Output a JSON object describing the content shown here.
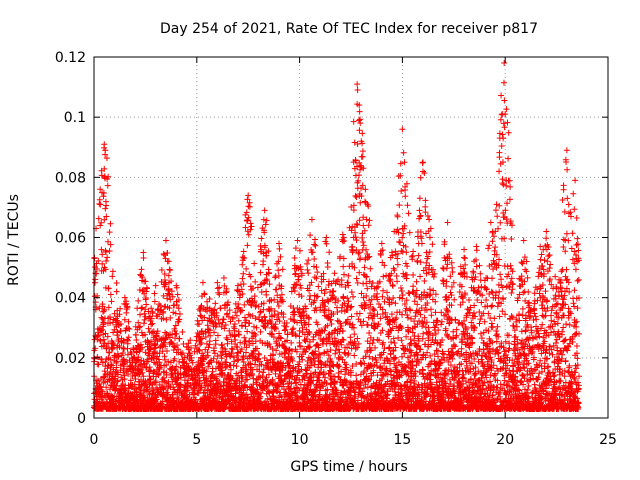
{
  "chart_data": {
    "type": "scatter",
    "title": "Day 254 of 2021, Rate Of TEC Index for receiver p817",
    "xlabel": "GPS time / hours",
    "ylabel": "ROTI / TECUs",
    "xlim": [
      0,
      25
    ],
    "ylim": [
      0,
      0.12
    ],
    "grid": true,
    "marker": "+",
    "color": "#ff0000",
    "xticks": [
      "0",
      "5",
      "10",
      "15",
      "20",
      "25"
    ],
    "yticks": [
      "0",
      "0.02",
      "0.04",
      "0.06",
      "0.08",
      "0.1",
      "0.12"
    ],
    "x_start": 0,
    "x_end": 23.6,
    "sample_interval_hours": 0.01,
    "series": [
      {
        "values_peaks": [
          [
            0.1,
            0.063
          ],
          [
            0.3,
            0.064
          ],
          [
            0.5,
            0.091
          ],
          [
            0.55,
            0.089
          ],
          [
            0.6,
            0.067
          ],
          [
            1.1,
            0.042
          ],
          [
            1.5,
            0.04
          ],
          [
            2.4,
            0.055
          ],
          [
            3.0,
            0.044
          ],
          [
            3.5,
            0.059
          ],
          [
            4.0,
            0.044
          ],
          [
            5.3,
            0.045
          ],
          [
            6.0,
            0.045
          ],
          [
            7.0,
            0.044
          ],
          [
            7.5,
            0.074
          ],
          [
            8.3,
            0.069
          ],
          [
            9.0,
            0.058
          ],
          [
            9.9,
            0.059
          ],
          [
            10.6,
            0.066
          ],
          [
            11.3,
            0.06
          ],
          [
            12.1,
            0.061
          ],
          [
            12.8,
            0.111
          ],
          [
            12.9,
            0.104
          ],
          [
            13.0,
            0.092
          ],
          [
            13.1,
            0.083
          ],
          [
            13.3,
            0.071
          ],
          [
            14.0,
            0.058
          ],
          [
            14.6,
            0.062
          ],
          [
            15.0,
            0.096
          ],
          [
            15.1,
            0.085
          ],
          [
            15.3,
            0.068
          ],
          [
            16.0,
            0.085
          ],
          [
            16.3,
            0.066
          ],
          [
            17.2,
            0.065
          ],
          [
            18.0,
            0.056
          ],
          [
            18.6,
            0.057
          ],
          [
            19.3,
            0.065
          ],
          [
            19.7,
            0.082
          ],
          [
            19.9,
            0.093
          ],
          [
            19.95,
            0.118
          ],
          [
            20.0,
            0.101
          ],
          [
            20.05,
            0.079
          ],
          [
            20.9,
            0.059
          ],
          [
            21.7,
            0.057
          ],
          [
            22.0,
            0.062
          ],
          [
            22.5,
            0.043
          ],
          [
            23.0,
            0.089
          ],
          [
            23.2,
            0.067
          ],
          [
            23.4,
            0.079
          ],
          [
            23.5,
            0.052
          ]
        ]
      }
    ]
  }
}
